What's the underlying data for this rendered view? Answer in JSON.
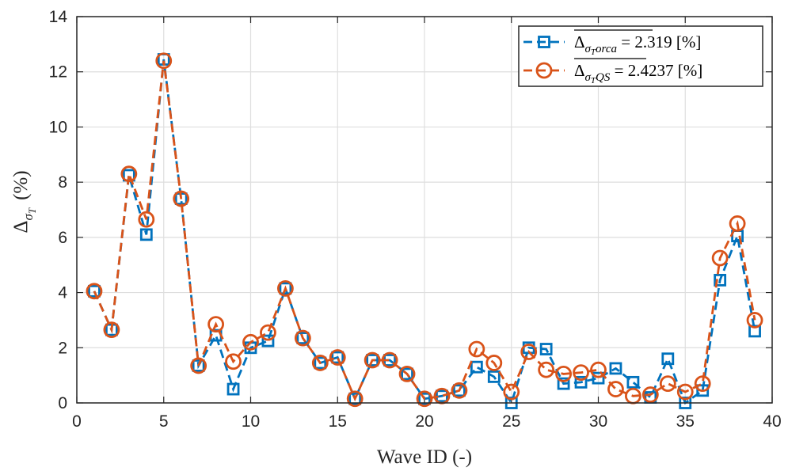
{
  "chart_data": {
    "type": "line",
    "xlabel": "Wave ID (-)",
    "ylabel": {
      "base": "Δ",
      "sub": "σ",
      "subsub": "T",
      "rest": "(%)"
    },
    "xlim": [
      0,
      40
    ],
    "ylim": [
      0,
      14
    ],
    "xticks": [
      0,
      5,
      10,
      15,
      20,
      25,
      30,
      35,
      40
    ],
    "yticks": [
      0,
      2,
      4,
      6,
      8,
      10,
      12,
      14
    ],
    "grid": true,
    "legend_position": "top-right",
    "x": [
      1,
      2,
      3,
      4,
      5,
      6,
      7,
      8,
      9,
      10,
      11,
      12,
      13,
      14,
      15,
      16,
      17,
      18,
      19,
      20,
      21,
      22,
      23,
      24,
      25,
      26,
      27,
      28,
      29,
      30,
      31,
      32,
      33,
      34,
      35,
      36,
      37,
      38,
      39
    ],
    "series": [
      {
        "name": "Δ σT orca = 2.319 [%]",
        "legend": {
          "base": "Δ",
          "sub": "σ",
          "subsub": "T",
          "subrest": "orca",
          "rest": " = 2.319 [%]"
        },
        "color": "#0072BD",
        "marker": "square",
        "values": [
          4.05,
          2.65,
          8.25,
          6.1,
          12.45,
          7.4,
          1.35,
          2.45,
          0.5,
          2.0,
          2.25,
          4.15,
          2.35,
          1.45,
          1.65,
          0.15,
          1.55,
          1.55,
          1.05,
          0.15,
          0.25,
          0.45,
          1.3,
          0.95,
          0.0,
          2.0,
          1.95,
          0.7,
          0.75,
          0.9,
          1.25,
          0.75,
          0.2,
          1.6,
          0.0,
          0.45,
          4.45,
          6.05,
          2.6
        ]
      },
      {
        "name": "Δ σT QS = 2.4237 [%]",
        "legend": {
          "base": "Δ",
          "sub": "σ",
          "subsub": "T",
          "subrest": "QS",
          "rest": " = 2.4237 [%]"
        },
        "color": "#D95319",
        "marker": "circle",
        "values": [
          4.05,
          2.65,
          8.3,
          6.65,
          12.4,
          7.4,
          1.35,
          2.85,
          1.5,
          2.2,
          2.55,
          4.15,
          2.35,
          1.45,
          1.65,
          0.15,
          1.55,
          1.55,
          1.05,
          0.15,
          0.25,
          0.45,
          1.95,
          1.45,
          0.4,
          1.85,
          1.2,
          1.05,
          1.1,
          1.2,
          0.5,
          0.25,
          0.3,
          0.7,
          0.4,
          0.7,
          5.25,
          6.5,
          3.0
        ]
      }
    ]
  }
}
